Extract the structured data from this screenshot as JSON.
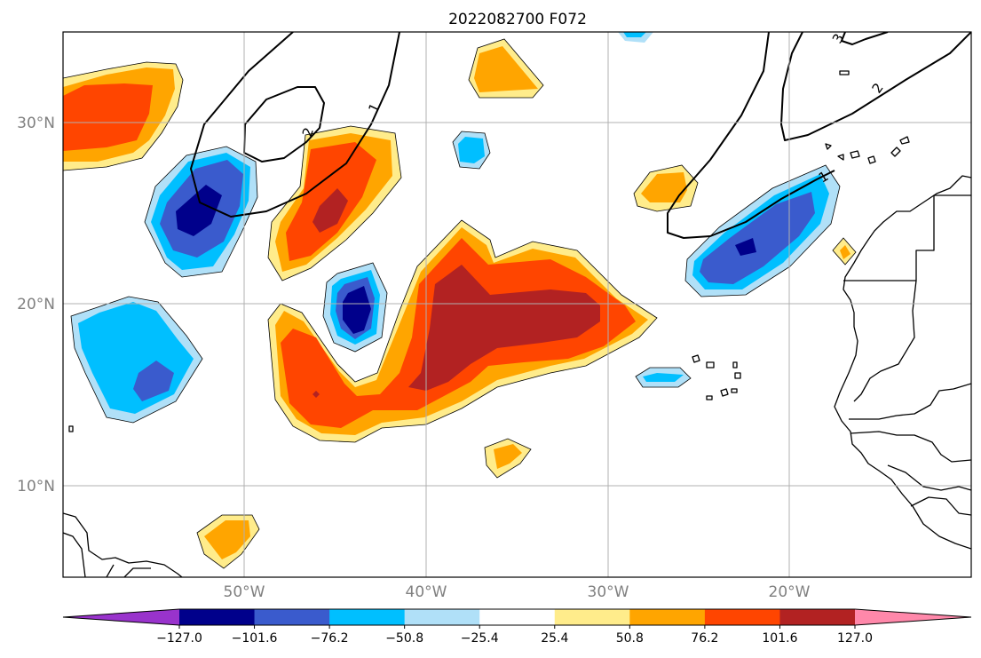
{
  "title": "2022082700 F072",
  "colors": {
    "n_lt127": "#9933cc",
    "n_127": "#00008b",
    "n_101": "#3a5bcd",
    "n_76": "#00bfff",
    "n_50": "#b0e0f8",
    "neutral": "#ffffff",
    "p_25": "#ffec8b",
    "p_50": "#ffa500",
    "p_76": "#ff4500",
    "p_101": "#b22222",
    "p_gt127": "#ff88aa"
  },
  "map": {
    "lon_range": [
      -60,
      -10
    ],
    "lat_range": [
      5,
      35
    ],
    "lat_ticks": [
      "30°N",
      "20°N",
      "10°N"
    ],
    "lon_ticks": [
      "50°W",
      "40°W",
      "30°W",
      "20°W"
    ],
    "contour_labels": [
      "1",
      "2",
      "2",
      "1",
      "2",
      "3"
    ]
  },
  "colorbar": {
    "levels": [
      -127.0,
      -101.6,
      -76.2,
      -50.8,
      -25.4,
      25.4,
      50.8,
      76.2,
      101.6,
      127.0
    ],
    "tick_labels": [
      "−127.0",
      "−101.6",
      "−76.2",
      "−50.8",
      "−25.4",
      "25.4",
      "50.8",
      "76.2",
      "101.6",
      "127.0"
    ],
    "extend": "both"
  }
}
